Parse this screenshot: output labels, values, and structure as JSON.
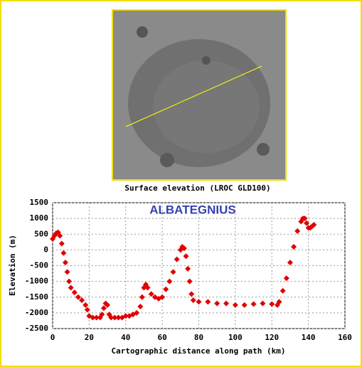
{
  "chart_data": {
    "type": "scatter",
    "title": "ALBATEGNIUS",
    "image_caption": "Surface elevation (LROC GLD100)",
    "x_label": "Cartographic distance along path (km)",
    "y_label": "Elevation (m)",
    "x": [
      0,
      1,
      2,
      3,
      4,
      5,
      6,
      7,
      8,
      9,
      10,
      12,
      14,
      16,
      18,
      19,
      20,
      22,
      24,
      26,
      27,
      28,
      29,
      30,
      31,
      32,
      34,
      36,
      38,
      40,
      42,
      44,
      46,
      48,
      49,
      50,
      51,
      52,
      54,
      56,
      58,
      60,
      62,
      64,
      66,
      68,
      70,
      71,
      72,
      73,
      74,
      75,
      76,
      77,
      80,
      85,
      90,
      95,
      100,
      105,
      110,
      115,
      120,
      123,
      124,
      126,
      128,
      130,
      132,
      134,
      136,
      137,
      138,
      139,
      140,
      141,
      142,
      143
    ],
    "values": [
      350,
      450,
      530,
      560,
      450,
      200,
      -100,
      -400,
      -700,
      -1000,
      -1200,
      -1350,
      -1500,
      -1600,
      -1750,
      -1900,
      -2100,
      -2150,
      -2150,
      -2150,
      -2050,
      -1850,
      -1700,
      -1750,
      -2050,
      -2150,
      -2150,
      -2150,
      -2150,
      -2100,
      -2100,
      -2050,
      -2000,
      -1800,
      -1500,
      -1200,
      -1100,
      -1200,
      -1400,
      -1500,
      -1550,
      -1500,
      -1250,
      -1000,
      -700,
      -300,
      0,
      100,
      50,
      -200,
      -600,
      -1000,
      -1400,
      -1600,
      -1650,
      -1650,
      -1700,
      -1700,
      -1750,
      -1750,
      -1720,
      -1700,
      -1720,
      -1750,
      -1650,
      -1300,
      -900,
      -400,
      100,
      600,
      900,
      1000,
      1000,
      850,
      700,
      700,
      750,
      800
    ],
    "color": "#e00000",
    "xlim": [
      0,
      160
    ],
    "xticks": [
      0,
      20,
      40,
      60,
      80,
      100,
      120,
      140,
      160
    ],
    "ylim": [
      -2500,
      1500
    ],
    "yticks": [
      -2500,
      -2000,
      -1500,
      -1000,
      -500,
      0,
      500,
      1000,
      1500
    ],
    "grid": true
  }
}
